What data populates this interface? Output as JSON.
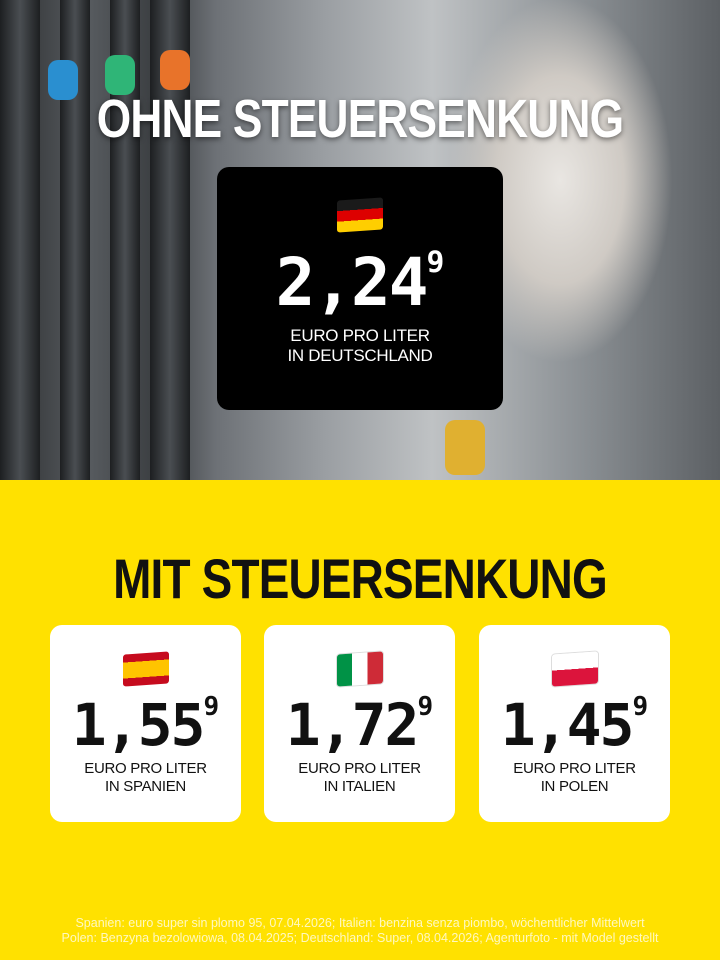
{
  "top": {
    "headline": "OHNE STEUERSENKUNG",
    "germany": {
      "flag": "flag-germany",
      "price_main": "2,24",
      "price_sup": "9",
      "unit_line1": "EURO PRO LITER",
      "unit_line2": "IN DEUTSCHLAND"
    }
  },
  "bottom": {
    "headline": "MIT STEUERSENKUNG",
    "countries": [
      {
        "flag": "flag-spain",
        "price_main": "1,55",
        "price_sup": "9",
        "unit_line1": "EURO PRO LITER",
        "unit_line2": "IN SPANIEN"
      },
      {
        "flag": "flag-italy",
        "price_main": "1,72",
        "price_sup": "9",
        "unit_line1": "EURO PRO LITER",
        "unit_line2": "IN ITALIEN"
      },
      {
        "flag": "flag-poland",
        "price_main": "1,45",
        "price_sup": "9",
        "unit_line1": "EURO PRO LITER",
        "unit_line2": "IN POLEN"
      }
    ]
  },
  "footer": {
    "line1": "Spanien: euro super sin plomo 95, 07.04.2026; Italien: benzina senza piombo, wöchentlicher Mittelwert",
    "line2": "Polen: Benzyna bezolowiowa, 08.04.2025; Deutschland: Super, 08.04.2026; Agenturfoto - mit Model gestellt"
  },
  "colors": {
    "background_yellow": "#ffe100",
    "card_black": "#000000",
    "card_white": "#ffffff"
  }
}
